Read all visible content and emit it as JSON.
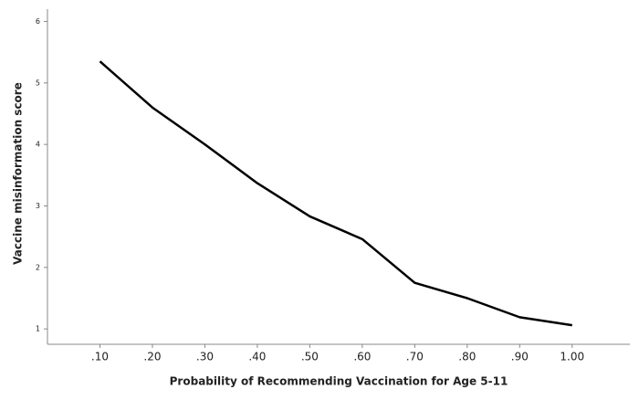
{
  "chart_data": {
    "type": "line",
    "x_label": "Probability of Recommending Vaccination for Age 5-11",
    "y_label": "Vaccine misinformation score",
    "x": [
      0.1,
      0.2,
      0.3,
      0.4,
      0.5,
      0.6,
      0.7,
      0.8,
      0.9,
      1.0
    ],
    "values": [
      5.35,
      4.6,
      4.0,
      3.37,
      2.83,
      2.46,
      1.75,
      1.5,
      1.19,
      1.06
    ],
    "color": "#000000",
    "xlim": [
      0,
      1.11
    ],
    "xticks": [
      {
        "value": 0.1,
        "label": ".10"
      },
      {
        "value": 0.2,
        "label": ".20"
      },
      {
        "value": 0.3,
        "label": ".30"
      },
      {
        "value": 0.4,
        "label": ".40"
      },
      {
        "value": 0.5,
        "label": ".50"
      },
      {
        "value": 0.6,
        "label": ".60"
      },
      {
        "value": 0.7,
        "label": ".70"
      },
      {
        "value": 0.8,
        "label": ".80"
      },
      {
        "value": 0.9,
        "label": ".90"
      },
      {
        "value": 1.0,
        "label": "1.00"
      }
    ],
    "ylim": [
      0.75,
      6.2
    ],
    "yticks": [
      1,
      2,
      3,
      4,
      5,
      6
    ]
  }
}
